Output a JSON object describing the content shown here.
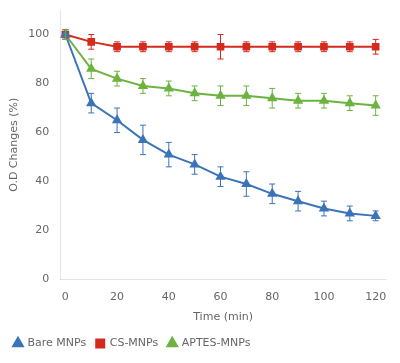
{
  "chart_data": {
    "type": "line",
    "x_label": "Time (min)",
    "y_label": "O.D Changes (%)",
    "x": [
      0,
      10,
      20,
      30,
      40,
      50,
      60,
      70,
      80,
      90,
      100,
      110,
      120
    ],
    "series": [
      {
        "name": "Bare MNPs",
        "color": "#3b74b8",
        "marker": "triangle",
        "values": [
          100,
          72,
          65,
          57,
          51,
          47,
          42,
          39,
          35,
          32,
          29,
          27,
          26
        ],
        "errors": [
          2,
          4,
          5,
          6,
          5,
          4,
          4,
          5,
          4,
          4,
          3,
          3,
          2
        ]
      },
      {
        "name": "CS-MNPs",
        "color": "#d42b1e",
        "marker": "square",
        "values": [
          100,
          97,
          95,
          95,
          95,
          95,
          95,
          95,
          95,
          95,
          95,
          95,
          95
        ],
        "errors": [
          2,
          3,
          2,
          2,
          2,
          2,
          5,
          2,
          2,
          2,
          2,
          2,
          3
        ]
      },
      {
        "name": "APTES-MNPs",
        "color": "#6db33f",
        "marker": "triangle",
        "values": [
          100,
          86,
          82,
          79,
          78,
          76,
          75,
          75,
          74,
          73,
          73,
          72,
          71
        ],
        "errors": [
          2,
          4,
          3,
          3,
          3,
          3,
          4,
          4,
          4,
          3,
          3,
          3,
          4
        ]
      }
    ],
    "xlim": [
      -2,
      124
    ],
    "ylim": [
      0,
      110
    ],
    "xticks": [
      0,
      20,
      40,
      60,
      80,
      100,
      120
    ],
    "yticks": [
      0,
      20,
      40,
      60,
      80,
      100
    ],
    "grid": false,
    "legend": "lower left"
  }
}
